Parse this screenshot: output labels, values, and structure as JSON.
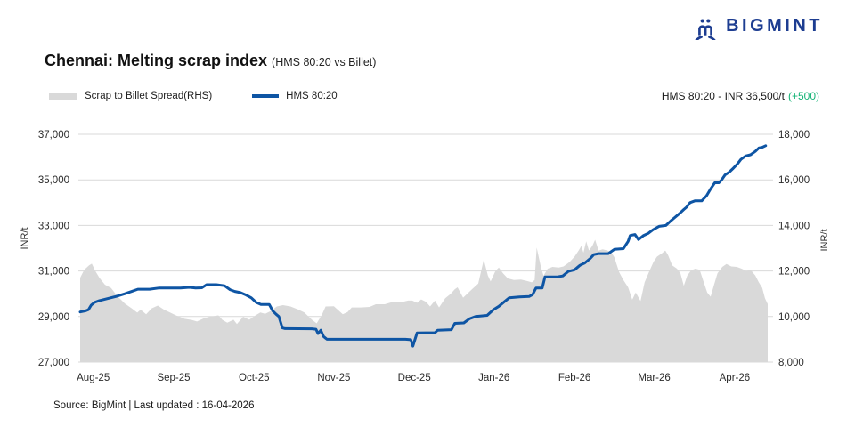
{
  "logo": {
    "text": "BIGMINT",
    "color": "#1d3d91"
  },
  "title": {
    "main": "Chennai: Melting scrap index",
    "sub": "(HMS 80:20 vs Billet)"
  },
  "legend": [
    {
      "label": "Scrap to Billet Spread(RHS)",
      "type": "area",
      "color": "#d9d9d9"
    },
    {
      "label": "HMS 80:20",
      "type": "line",
      "color": "#0e55a4"
    }
  ],
  "annotation": {
    "main": "HMS 80:20 - INR 36,500/t",
    "change": "(+500)",
    "change_color": "#14b376"
  },
  "source": "Source: BigMint | Last updated : 16-04-2026",
  "axis_labels": {
    "left": "INR/t",
    "right": "INR/t"
  },
  "chart_data": {
    "type": "combo",
    "title": "Chennai: Melting scrap index (HMS 80:20 vs Billet)",
    "grid": true,
    "grid_color": "#d9d9d9",
    "left_axis": {
      "label": "INR/t",
      "min": 27000,
      "max": 37000,
      "ticks": [
        37000,
        35000,
        33000,
        31000,
        29000,
        27000
      ]
    },
    "right_axis": {
      "label": "INR/t",
      "min": 8000,
      "max": 18000,
      "ticks": [
        18000,
        16000,
        14000,
        12000,
        10000,
        8000
      ]
    },
    "x_ticks": [
      {
        "t": 0.019,
        "label": "Aug-25"
      },
      {
        "t": 0.136,
        "label": "Sep-25"
      },
      {
        "t": 0.253,
        "label": "Oct-25"
      },
      {
        "t": 0.369,
        "label": "Nov-25"
      },
      {
        "t": 0.486,
        "label": "Dec-25"
      },
      {
        "t": 0.602,
        "label": "Jan-26"
      },
      {
        "t": 0.719,
        "label": "Feb-26"
      },
      {
        "t": 0.835,
        "label": "Mar-26"
      },
      {
        "t": 0.952,
        "label": "Apr-26"
      }
    ],
    "last_value": {
      "series": "HMS 80:20",
      "value": 36500,
      "change": 500,
      "unit": "INR/t"
    },
    "series": [
      {
        "name": "Scrap to Billet Spread(RHS)",
        "type": "area",
        "axis": "right",
        "color": "#d9d9d9",
        "points": [
          [
            0.0,
            11700
          ],
          [
            0.006,
            12050
          ],
          [
            0.013,
            12250
          ],
          [
            0.017,
            12320
          ],
          [
            0.022,
            12000
          ],
          [
            0.028,
            11700
          ],
          [
            0.036,
            11400
          ],
          [
            0.045,
            11250
          ],
          [
            0.054,
            10900
          ],
          [
            0.065,
            10570
          ],
          [
            0.075,
            10360
          ],
          [
            0.083,
            10170
          ],
          [
            0.088,
            10300
          ],
          [
            0.096,
            10100
          ],
          [
            0.104,
            10360
          ],
          [
            0.113,
            10480
          ],
          [
            0.122,
            10300
          ],
          [
            0.131,
            10170
          ],
          [
            0.14,
            10040
          ],
          [
            0.152,
            9900
          ],
          [
            0.162,
            9850
          ],
          [
            0.17,
            9780
          ],
          [
            0.179,
            9910
          ],
          [
            0.188,
            9990
          ],
          [
            0.201,
            10050
          ],
          [
            0.207,
            9850
          ],
          [
            0.214,
            9730
          ],
          [
            0.223,
            9860
          ],
          [
            0.228,
            9670
          ],
          [
            0.237,
            9990
          ],
          [
            0.246,
            9860
          ],
          [
            0.255,
            10050
          ],
          [
            0.262,
            10180
          ],
          [
            0.269,
            10120
          ],
          [
            0.278,
            10250
          ],
          [
            0.286,
            10440
          ],
          [
            0.295,
            10500
          ],
          [
            0.306,
            10440
          ],
          [
            0.317,
            10310
          ],
          [
            0.326,
            10180
          ],
          [
            0.337,
            9860
          ],
          [
            0.344,
            9700
          ],
          [
            0.352,
            10100
          ],
          [
            0.357,
            10440
          ],
          [
            0.369,
            10450
          ],
          [
            0.382,
            10100
          ],
          [
            0.389,
            10200
          ],
          [
            0.395,
            10400
          ],
          [
            0.408,
            10400
          ],
          [
            0.421,
            10420
          ],
          [
            0.43,
            10540
          ],
          [
            0.443,
            10540
          ],
          [
            0.453,
            10630
          ],
          [
            0.466,
            10620
          ],
          [
            0.477,
            10700
          ],
          [
            0.483,
            10700
          ],
          [
            0.49,
            10600
          ],
          [
            0.496,
            10750
          ],
          [
            0.503,
            10650
          ],
          [
            0.509,
            10440
          ],
          [
            0.516,
            10700
          ],
          [
            0.522,
            10400
          ],
          [
            0.531,
            10800
          ],
          [
            0.539,
            11000
          ],
          [
            0.545,
            11200
          ],
          [
            0.549,
            11280
          ],
          [
            0.557,
            10830
          ],
          [
            0.57,
            11200
          ],
          [
            0.579,
            11450
          ],
          [
            0.587,
            12500
          ],
          [
            0.593,
            11800
          ],
          [
            0.597,
            11540
          ],
          [
            0.604,
            12000
          ],
          [
            0.609,
            12150
          ],
          [
            0.615,
            11900
          ],
          [
            0.622,
            11670
          ],
          [
            0.631,
            11600
          ],
          [
            0.641,
            11620
          ],
          [
            0.65,
            11560
          ],
          [
            0.657,
            11500
          ],
          [
            0.661,
            11600
          ],
          [
            0.664,
            13030
          ],
          [
            0.67,
            12200
          ],
          [
            0.674,
            11790
          ],
          [
            0.68,
            12100
          ],
          [
            0.687,
            12180
          ],
          [
            0.696,
            12150
          ],
          [
            0.703,
            12200
          ],
          [
            0.712,
            12400
          ],
          [
            0.719,
            12630
          ],
          [
            0.725,
            12900
          ],
          [
            0.729,
            13100
          ],
          [
            0.732,
            12800
          ],
          [
            0.736,
            13300
          ],
          [
            0.74,
            12900
          ],
          [
            0.745,
            13100
          ],
          [
            0.749,
            13370
          ],
          [
            0.754,
            12900
          ],
          [
            0.76,
            12950
          ],
          [
            0.767,
            12900
          ],
          [
            0.773,
            12800
          ],
          [
            0.777,
            12600
          ],
          [
            0.784,
            11950
          ],
          [
            0.79,
            11600
          ],
          [
            0.797,
            11280
          ],
          [
            0.803,
            10740
          ],
          [
            0.808,
            11060
          ],
          [
            0.815,
            10680
          ],
          [
            0.821,
            11500
          ],
          [
            0.828,
            12000
          ],
          [
            0.834,
            12400
          ],
          [
            0.839,
            12630
          ],
          [
            0.846,
            12770
          ],
          [
            0.851,
            12900
          ],
          [
            0.855,
            12700
          ],
          [
            0.861,
            12250
          ],
          [
            0.868,
            12100
          ],
          [
            0.873,
            11900
          ],
          [
            0.878,
            11350
          ],
          [
            0.883,
            11800
          ],
          [
            0.889,
            12040
          ],
          [
            0.895,
            12100
          ],
          [
            0.901,
            12050
          ],
          [
            0.907,
            11500
          ],
          [
            0.912,
            11050
          ],
          [
            0.917,
            10870
          ],
          [
            0.922,
            11400
          ],
          [
            0.927,
            11900
          ],
          [
            0.934,
            12180
          ],
          [
            0.94,
            12310
          ],
          [
            0.947,
            12200
          ],
          [
            0.955,
            12180
          ],
          [
            0.962,
            12100
          ],
          [
            0.969,
            12000
          ],
          [
            0.975,
            12050
          ],
          [
            0.982,
            11800
          ],
          [
            0.987,
            11500
          ],
          [
            0.992,
            11260
          ],
          [
            0.996,
            10800
          ],
          [
            1.0,
            10550
          ]
        ]
      },
      {
        "name": "HMS 80:20",
        "type": "line",
        "axis": "left",
        "color": "#0e55a4",
        "points": [
          [
            0.0,
            29200
          ],
          [
            0.008,
            29250
          ],
          [
            0.012,
            29300
          ],
          [
            0.016,
            29500
          ],
          [
            0.021,
            29620
          ],
          [
            0.028,
            29700
          ],
          [
            0.039,
            29780
          ],
          [
            0.052,
            29880
          ],
          [
            0.065,
            30000
          ],
          [
            0.075,
            30100
          ],
          [
            0.084,
            30200
          ],
          [
            0.101,
            30200
          ],
          [
            0.114,
            30250
          ],
          [
            0.146,
            30250
          ],
          [
            0.159,
            30280
          ],
          [
            0.168,
            30250
          ],
          [
            0.177,
            30260
          ],
          [
            0.184,
            30400
          ],
          [
            0.198,
            30400
          ],
          [
            0.21,
            30350
          ],
          [
            0.218,
            30180
          ],
          [
            0.225,
            30100
          ],
          [
            0.233,
            30050
          ],
          [
            0.241,
            29950
          ],
          [
            0.249,
            29820
          ],
          [
            0.256,
            29620
          ],
          [
            0.263,
            29530
          ],
          [
            0.275,
            29530
          ],
          [
            0.28,
            29250
          ],
          [
            0.285,
            29100
          ],
          [
            0.289,
            29000
          ],
          [
            0.294,
            28500
          ],
          [
            0.298,
            28470
          ],
          [
            0.337,
            28460
          ],
          [
            0.343,
            28440
          ],
          [
            0.346,
            28250
          ],
          [
            0.35,
            28400
          ],
          [
            0.354,
            28120
          ],
          [
            0.359,
            28000
          ],
          [
            0.473,
            28000
          ],
          [
            0.481,
            27980
          ],
          [
            0.484,
            27700
          ],
          [
            0.49,
            28280
          ],
          [
            0.516,
            28290
          ],
          [
            0.52,
            28400
          ],
          [
            0.54,
            28420
          ],
          [
            0.545,
            28700
          ],
          [
            0.558,
            28720
          ],
          [
            0.566,
            28900
          ],
          [
            0.575,
            29000
          ],
          [
            0.592,
            29050
          ],
          [
            0.601,
            29300
          ],
          [
            0.609,
            29450
          ],
          [
            0.617,
            29650
          ],
          [
            0.624,
            29820
          ],
          [
            0.639,
            29860
          ],
          [
            0.653,
            29880
          ],
          [
            0.658,
            29960
          ],
          [
            0.663,
            30250
          ],
          [
            0.672,
            30250
          ],
          [
            0.676,
            30740
          ],
          [
            0.693,
            30740
          ],
          [
            0.702,
            30780
          ],
          [
            0.71,
            30980
          ],
          [
            0.719,
            31050
          ],
          [
            0.727,
            31250
          ],
          [
            0.734,
            31350
          ],
          [
            0.742,
            31550
          ],
          [
            0.747,
            31720
          ],
          [
            0.754,
            31760
          ],
          [
            0.768,
            31760
          ],
          [
            0.777,
            31950
          ],
          [
            0.79,
            31980
          ],
          [
            0.797,
            32300
          ],
          [
            0.8,
            32560
          ],
          [
            0.807,
            32600
          ],
          [
            0.812,
            32380
          ],
          [
            0.819,
            32550
          ],
          [
            0.826,
            32650
          ],
          [
            0.833,
            32810
          ],
          [
            0.842,
            32960
          ],
          [
            0.852,
            33000
          ],
          [
            0.859,
            33200
          ],
          [
            0.865,
            33350
          ],
          [
            0.872,
            33530
          ],
          [
            0.878,
            33700
          ],
          [
            0.882,
            33800
          ],
          [
            0.887,
            34000
          ],
          [
            0.894,
            34080
          ],
          [
            0.904,
            34080
          ],
          [
            0.911,
            34300
          ],
          [
            0.917,
            34600
          ],
          [
            0.923,
            34870
          ],
          [
            0.929,
            34870
          ],
          [
            0.933,
            35000
          ],
          [
            0.938,
            35220
          ],
          [
            0.944,
            35340
          ],
          [
            0.949,
            35480
          ],
          [
            0.956,
            35700
          ],
          [
            0.961,
            35900
          ],
          [
            0.968,
            36050
          ],
          [
            0.975,
            36100
          ],
          [
            0.982,
            36250
          ],
          [
            0.987,
            36400
          ],
          [
            0.992,
            36430
          ],
          [
            0.997,
            36500
          ]
        ]
      }
    ]
  }
}
